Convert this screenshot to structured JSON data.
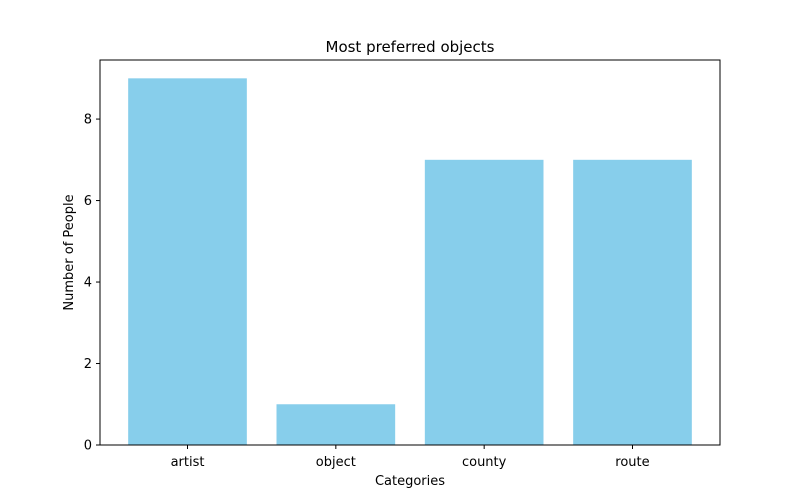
{
  "chart_data": {
    "type": "bar",
    "title": "Most preferred objects",
    "xlabel": "Categories",
    "ylabel": "Number of People",
    "categories": [
      "artist",
      "object",
      "county",
      "route"
    ],
    "values": [
      9,
      1,
      7,
      7
    ],
    "ylim": [
      0,
      9.45
    ],
    "yticks": [
      0,
      2,
      4,
      6,
      8
    ],
    "bar_color": "#87ceeb",
    "grid": false,
    "legend": "none"
  }
}
